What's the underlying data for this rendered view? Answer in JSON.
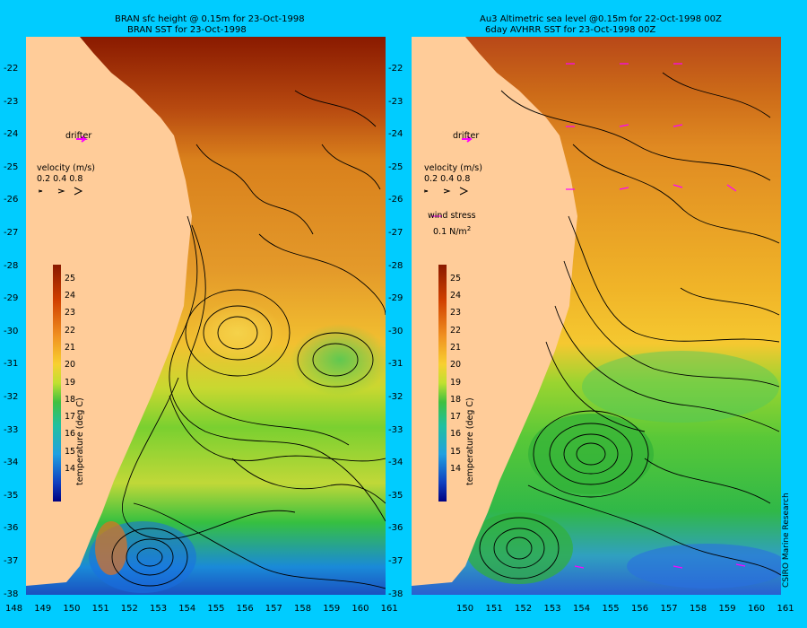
{
  "left_panel": {
    "title_line1": "BRAN sfc height @ 0.15m  for 23-Oct-1998",
    "title_line2": "BRAN SST for 23-Oct-1998",
    "drifter_label": "drifter",
    "velocity_label": "velocity (m/s)",
    "velocity_scale": "0.2 0.4 0.8"
  },
  "right_panel": {
    "title_line1": "Au3 Altimetric sea level  @0.15m  for 22-Oct-1998 00Z",
    "title_line2": "6day AVHRR SST for 23-Oct-1998 00Z",
    "drifter_label": "drifter",
    "velocity_label": "velocity (m/s)",
    "velocity_scale": "0.2 0.4 0.8",
    "wind_label": "wind stress",
    "wind_value": "0.1 N/m",
    "wind_unit_sup": "2"
  },
  "colorbar": {
    "label": "temperature (deg C)",
    "ticks": [
      "25",
      "24",
      "23",
      "22",
      "21",
      "20",
      "19",
      "18",
      "17",
      "16",
      "15",
      "14"
    ]
  },
  "lat_ticks": [
    "-22",
    "-23",
    "-24",
    "-25",
    "-26",
    "-27",
    "-28",
    "-29",
    "-30",
    "-31",
    "-32",
    "-33",
    "-34",
    "-35",
    "-36",
    "-37",
    "-38"
  ],
  "lon_ticks_left": [
    "148",
    "149",
    "150",
    "151",
    "152",
    "153",
    "154",
    "155",
    "156",
    "157",
    "158",
    "159",
    "160",
    "161"
  ],
  "lon_ticks_right": [
    "150",
    "151",
    "152",
    "153",
    "154",
    "155",
    "156",
    "157",
    "158",
    "159",
    "160",
    "161"
  ],
  "credit": "CSIRO Marine Research",
  "colors": {
    "background": "#00ccff",
    "land": "#ffcc99",
    "drifter": "#ff00ff"
  }
}
